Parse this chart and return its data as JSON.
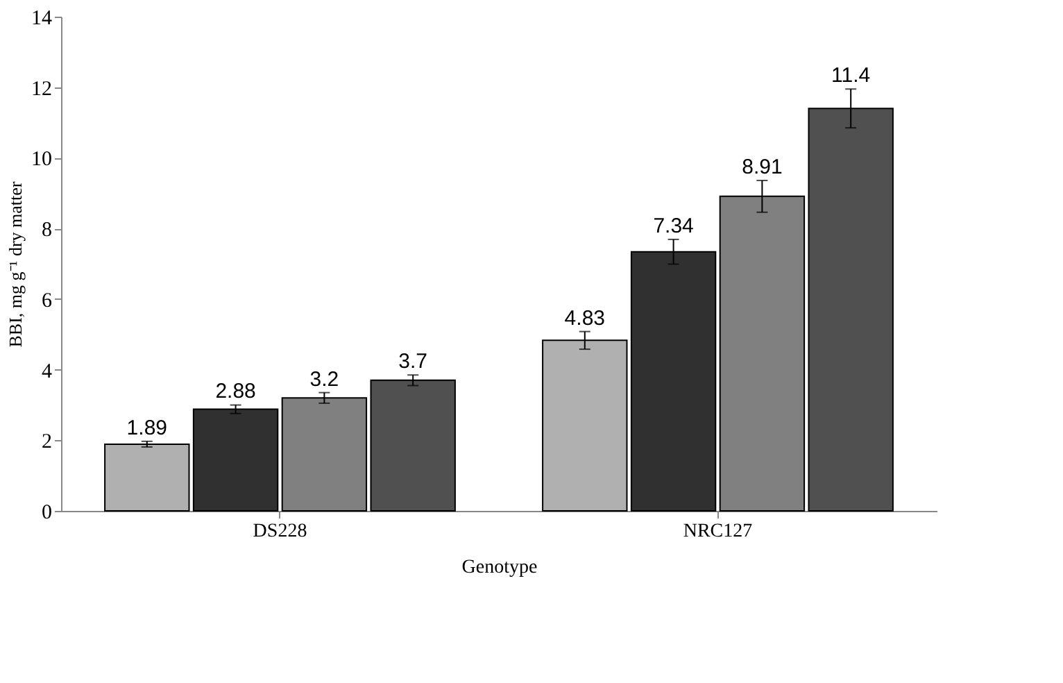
{
  "chart_data": {
    "type": "bar",
    "xlabel": "Genotype",
    "ylabel": "BBI, mg g⁻¹ dry matter",
    "categories": [
      "DS228",
      "NRC127"
    ],
    "series": [
      {
        "color": "#b0b0b0",
        "values": [
          1.89,
          4.83
        ],
        "errors": [
          0.08,
          0.25
        ]
      },
      {
        "color": "#303030",
        "values": [
          2.88,
          7.34
        ],
        "errors": [
          0.12,
          0.35
        ]
      },
      {
        "color": "#808080",
        "values": [
          3.2,
          8.91
        ],
        "errors": [
          0.15,
          0.45
        ]
      },
      {
        "color": "#505050",
        "values": [
          3.7,
          11.4
        ],
        "errors": [
          0.15,
          0.55
        ]
      }
    ],
    "ylim": [
      0,
      14
    ],
    "yticks": [
      0,
      2,
      4,
      6,
      8,
      10,
      12,
      14
    ],
    "grid": false,
    "legend": false,
    "data_labels": true
  }
}
